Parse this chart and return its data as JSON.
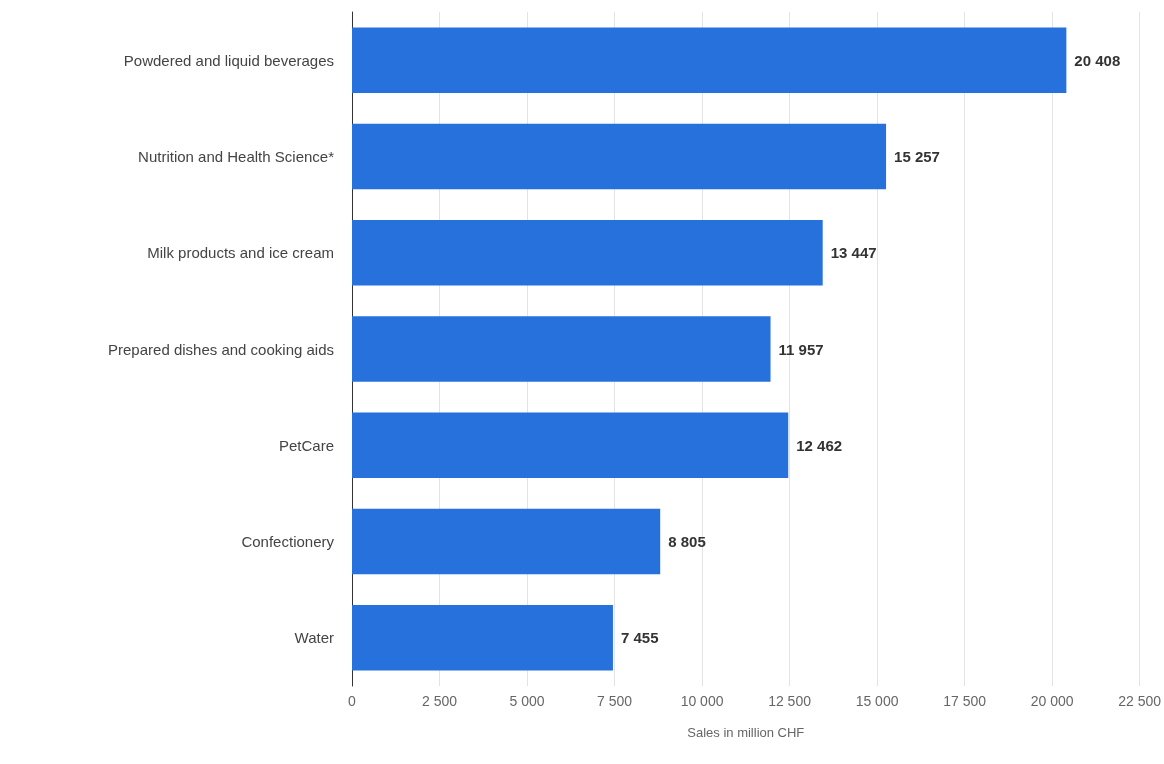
{
  "chart_data": {
    "type": "bar",
    "orientation": "horizontal",
    "xlabel": "Sales in million CHF",
    "categories": [
      "Powdered and liquid beverages",
      "Nutrition and Health Science*",
      "Milk products and ice cream",
      "Prepared dishes and cooking aids",
      "PetCare",
      "Confectionery",
      "Water"
    ],
    "values": [
      20408,
      15257,
      13447,
      11957,
      12462,
      8805,
      7455
    ],
    "value_labels": [
      "20 408",
      "15 257",
      "13 447",
      "11 957",
      "12 462",
      "8 805",
      "7 455"
    ],
    "color": "#2771dc",
    "xlim": [
      0,
      22500
    ],
    "xticks": [
      0,
      {
        "value": 2500,
        "label": "2 500"
      },
      {
        "value": 5000,
        "label": "5 000"
      },
      {
        "value": 7500,
        "label": "7 500"
      },
      {
        "value": 10000,
        "label": "10 000"
      },
      {
        "value": 12500,
        "label": "12 500"
      },
      {
        "value": 15000,
        "label": "15 000"
      },
      {
        "value": 17500,
        "label": "17 500"
      },
      {
        "value": 20000,
        "label": "20 000"
      },
      {
        "value": 22500,
        "label": "22 500"
      }
    ],
    "grid": "x"
  }
}
